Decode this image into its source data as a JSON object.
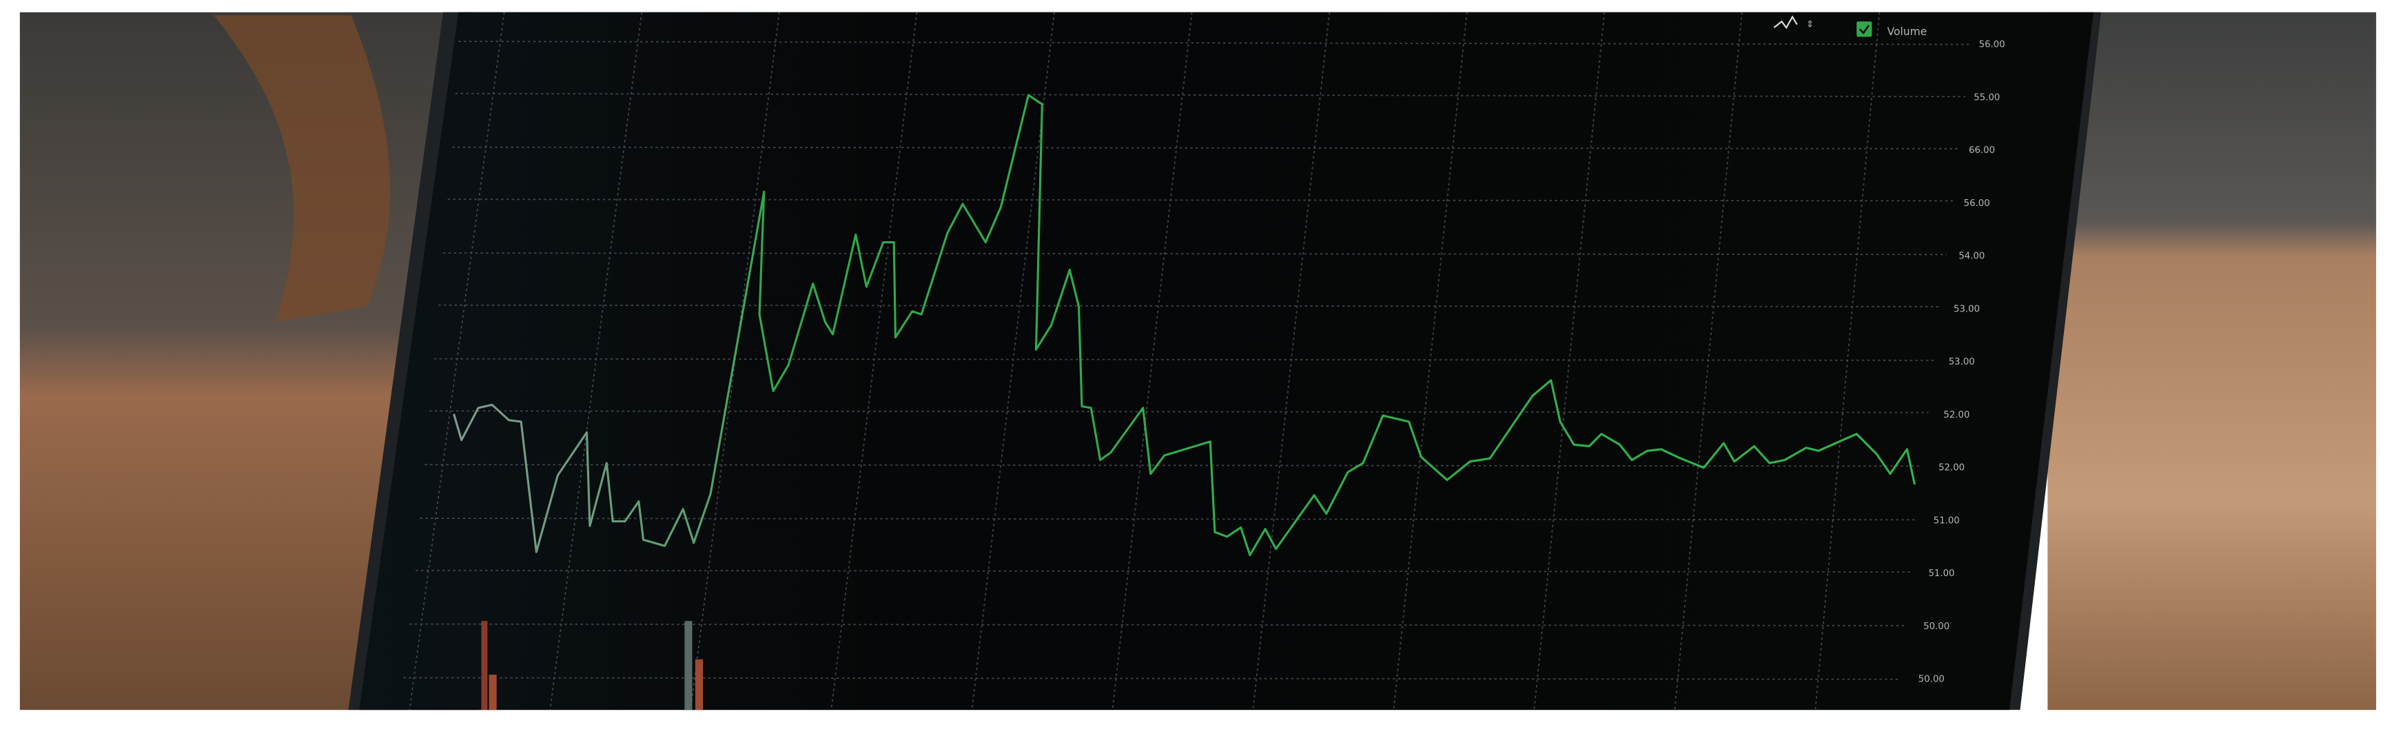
{
  "screen": {
    "legend_label": "Volume",
    "axis_labels": [
      "56.00",
      "55.00",
      "66.00",
      "56.00",
      "54.00",
      "53.00",
      "53.00",
      "52.00",
      "52.00",
      "51.00",
      "51.00",
      "50.00",
      "50.00"
    ]
  }
}
